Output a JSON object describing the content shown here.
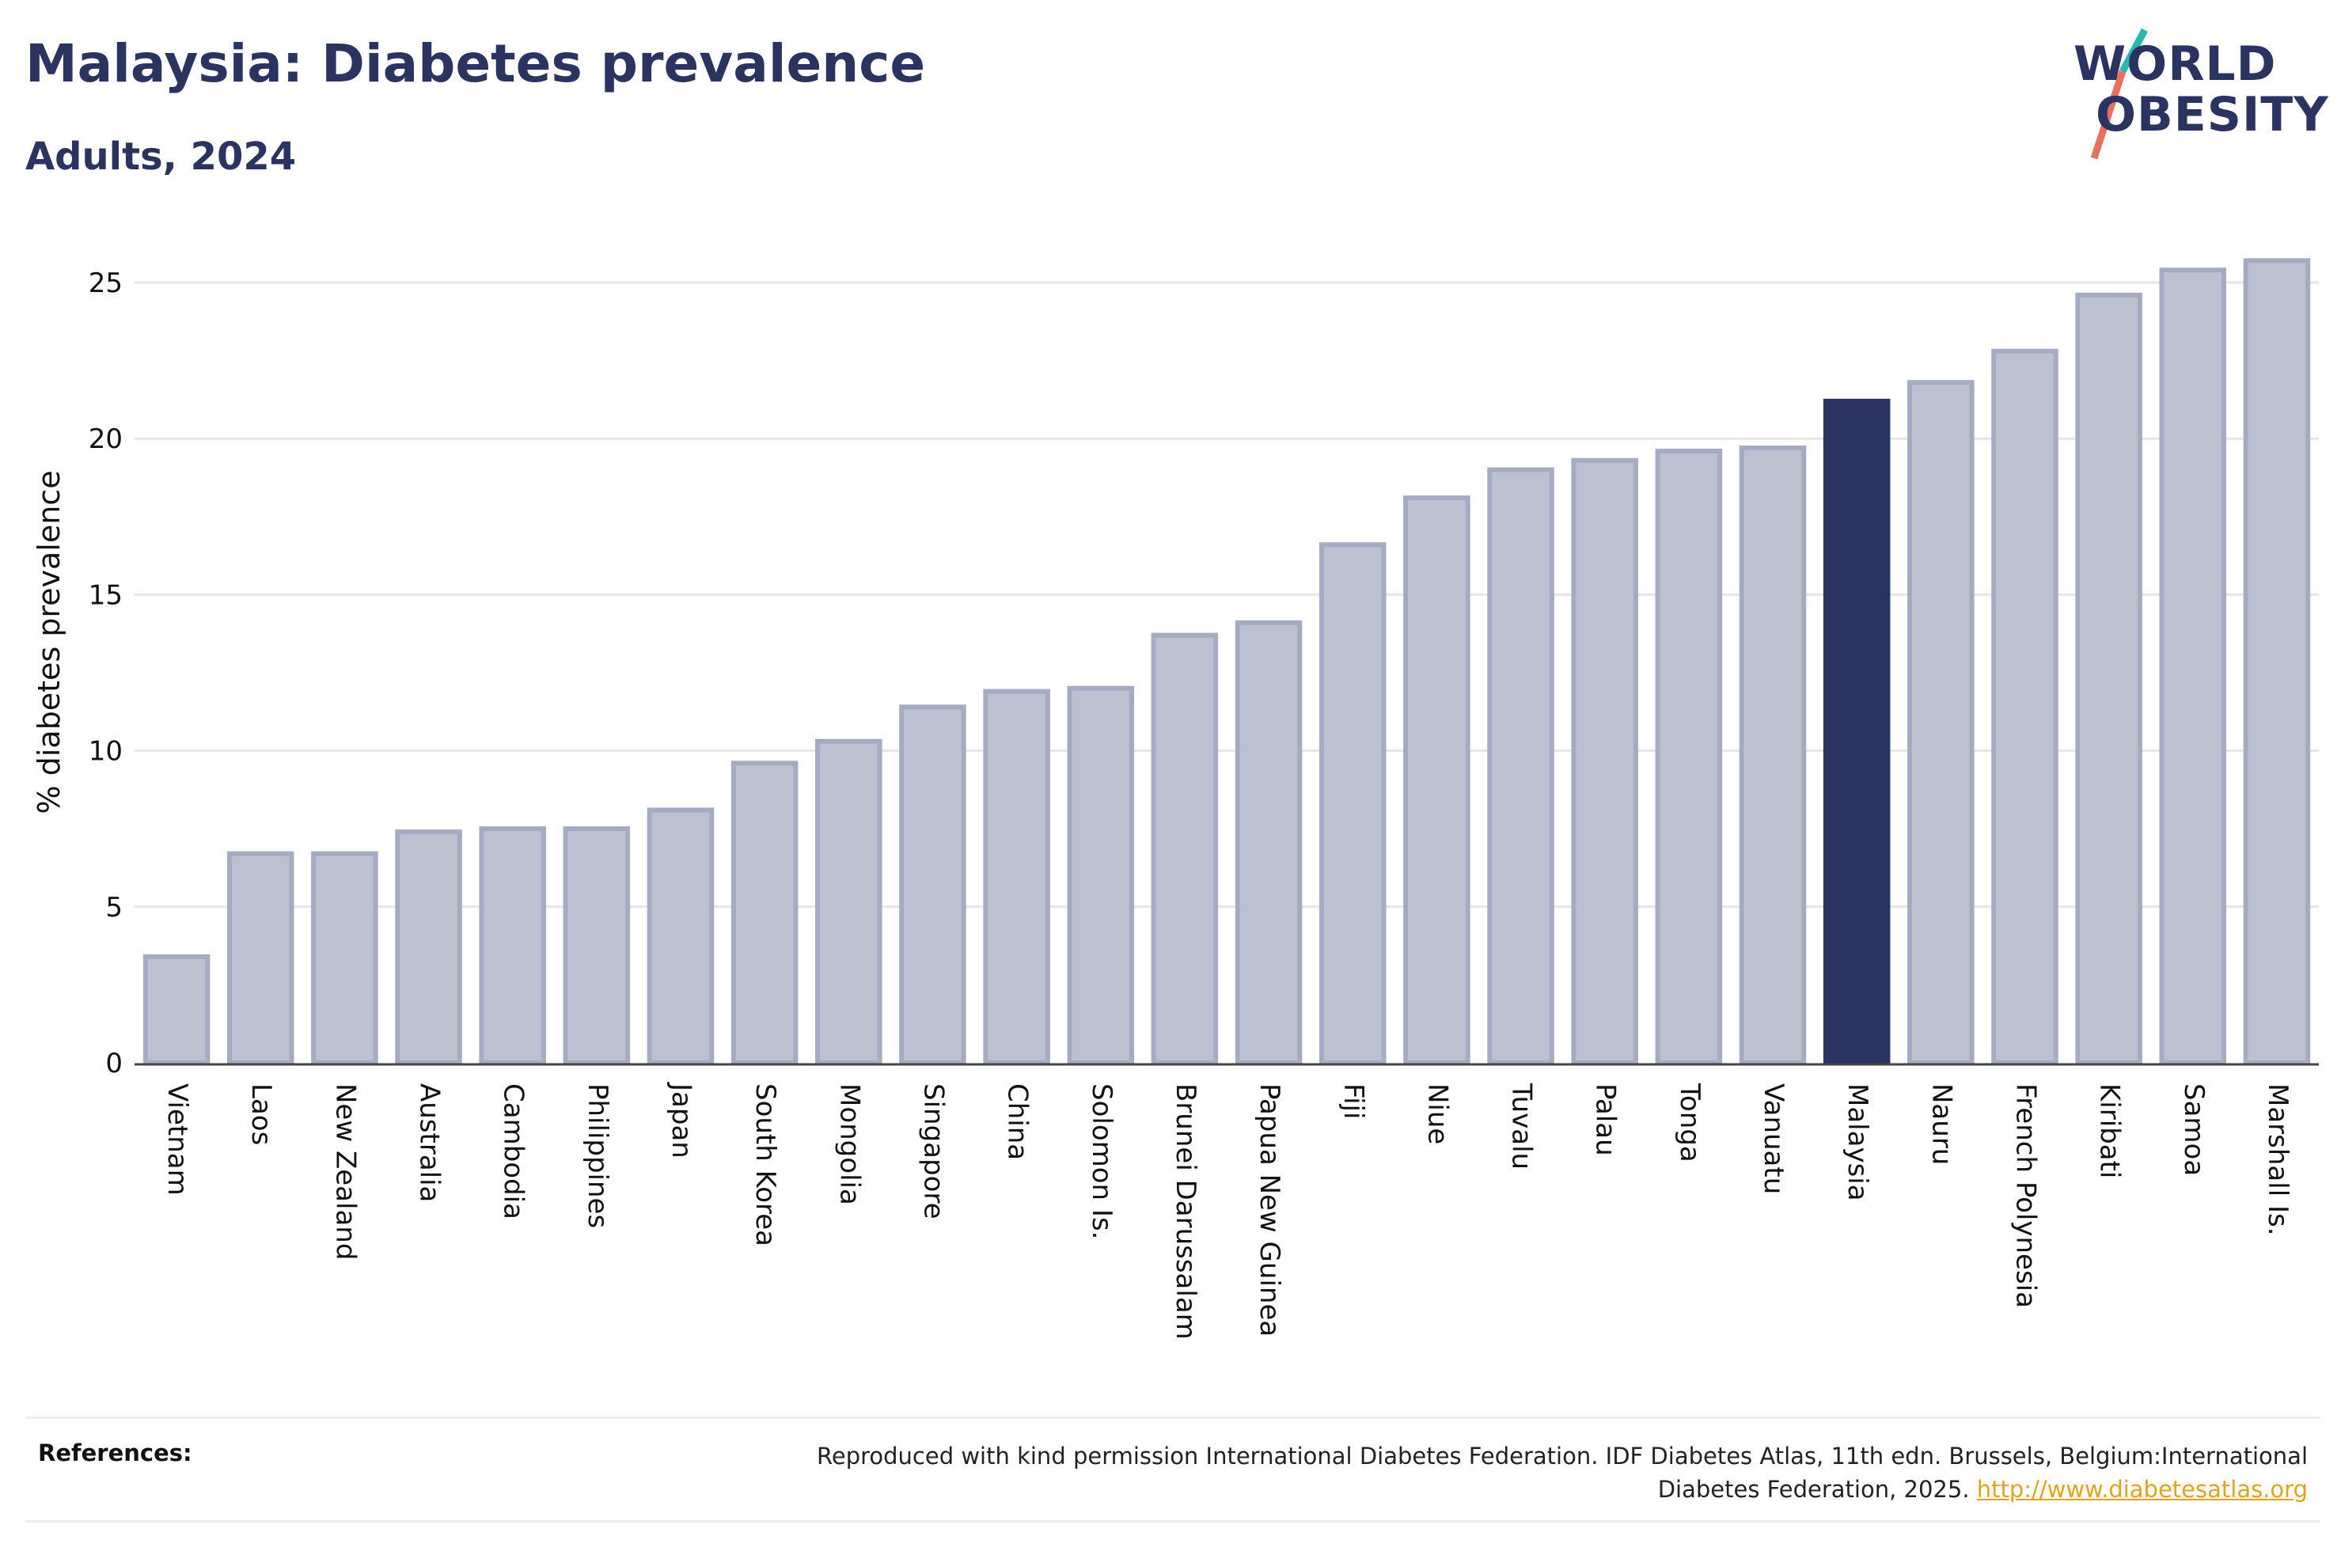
{
  "header": {
    "title": "Malaysia: Diabetes prevalence",
    "subtitle": "Adults, 2024"
  },
  "logo": {
    "line1": "WORLD",
    "line2": "OBESITY",
    "accent_colors": [
      "#2ab7b0",
      "#e8705f"
    ]
  },
  "chart_data": {
    "type": "bar",
    "ylabel": "% diabetes prevalence",
    "xlabel": "",
    "ylim": [
      0,
      26
    ],
    "yticks": [
      0,
      5,
      10,
      15,
      20,
      25
    ],
    "grid": true,
    "highlight": "Malaysia",
    "highlight_color": "#2b3461",
    "bar_color": "#bcc1cf",
    "bar_border_color": "#a5abc2",
    "categories": [
      "Vietnam",
      "Laos",
      "New Zealand",
      "Australia",
      "Cambodia",
      "Philippines",
      "Japan",
      "South Korea",
      "Mongolia",
      "Singapore",
      "China",
      "Solomon Is.",
      "Brunei Darussalam",
      "Papua New Guinea",
      "Fiji",
      "Niue",
      "Tuvalu",
      "Palau",
      "Tonga",
      "Vanuatu",
      "Malaysia",
      "Nauru",
      "French Polynesia",
      "Kiribati",
      "Samoa",
      "Marshall Is."
    ],
    "values": [
      3.4,
      6.7,
      6.7,
      7.4,
      7.5,
      7.5,
      8.1,
      9.6,
      10.3,
      11.4,
      11.9,
      12.0,
      13.7,
      14.1,
      16.6,
      18.1,
      19.0,
      19.3,
      19.6,
      19.7,
      21.2,
      21.8,
      22.8,
      24.6,
      25.4,
      25.7
    ]
  },
  "references": {
    "label": "References:",
    "text": "Reproduced with kind permission International Diabetes Federation. IDF Diabetes Atlas, 11th edn. Brussels, Belgium:International Diabetes Federation, 2025.",
    "link": "http://www.diabetesatlas.org"
  }
}
